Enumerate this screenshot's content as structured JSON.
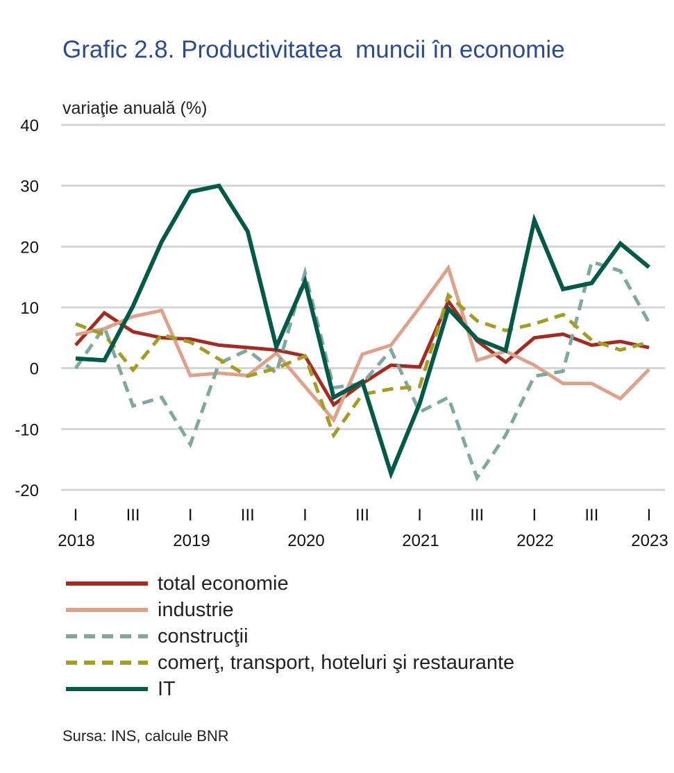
{
  "chart_data": {
    "type": "line",
    "title": "Grafic 2.8. Productivitatea  muncii în economie",
    "unit_label": "variaţie anuală (%)",
    "source": "Sursa: INS, calcule BNR",
    "ylim": [
      -20,
      40
    ],
    "y_ticks": [
      40,
      30,
      20,
      10,
      0,
      -10,
      -20
    ],
    "y_tick_labels": [
      "40",
      "30",
      "20",
      "10",
      "0",
      "-10",
      "-20"
    ],
    "grid": true,
    "x_quarter_ticks": [
      "I",
      "III",
      "I",
      "III",
      "I",
      "III",
      "I",
      "III",
      "I",
      "III",
      "I"
    ],
    "x_year_labels": [
      "2018",
      "2019",
      "2020",
      "2021",
      "2022",
      "2023"
    ],
    "x": [
      "2018 I",
      "2018 II",
      "2018 III",
      "2018 IV",
      "2019 I",
      "2019 II",
      "2019 III",
      "2019 IV",
      "2020 I",
      "2020 II",
      "2020 III",
      "2020 IV",
      "2021 I",
      "2021 II",
      "2021 III",
      "2021 IV",
      "2022 I",
      "2022 II",
      "2022 III",
      "2022 IV",
      "2023 I"
    ],
    "legend_position": "bottom",
    "series": [
      {
        "name": "total economie",
        "color": "#a52a22",
        "dash": "solid",
        "values": [
          3.8,
          9.1,
          6.0,
          5.0,
          4.8,
          3.8,
          3.4,
          3.0,
          2.0,
          -6.0,
          -2.5,
          0.5,
          0.2,
          11.0,
          4.5,
          1.0,
          5.0,
          5.6,
          3.8,
          4.4,
          3.4
        ]
      },
      {
        "name": "industrie",
        "color": "#e0a18a",
        "dash": "solid",
        "values": [
          5.5,
          6.5,
          8.5,
          9.5,
          -1.2,
          -0.8,
          -1.2,
          2.5,
          -3.0,
          -8.5,
          2.3,
          3.8,
          10.0,
          16.5,
          1.3,
          2.8,
          0.5,
          -2.5,
          -2.5,
          -5.0,
          -0.2
        ]
      },
      {
        "name": "construcţii",
        "color": "#7fa8a0",
        "dash": "dashed",
        "values": [
          0.0,
          6.8,
          -6.2,
          -4.8,
          -12.5,
          0.8,
          3.0,
          -0.8,
          15.7,
          -3.2,
          -2.5,
          3.0,
          -7.2,
          -4.8,
          -18.0,
          -11.0,
          -1.3,
          -0.5,
          17.5,
          16.0,
          7.5
        ]
      },
      {
        "name": "comerţ, transport, hoteluri şi restaurante",
        "color": "#a39d24",
        "dash": "dashed",
        "values": [
          7.3,
          5.5,
          -0.3,
          5.5,
          4.3,
          1.5,
          -1.3,
          0.0,
          2.0,
          -11.0,
          -4.3,
          -3.4,
          -3.0,
          12.0,
          7.8,
          6.2,
          7.3,
          8.8,
          4.6,
          3.0,
          4.3
        ]
      },
      {
        "name": "IT",
        "color": "#005a46",
        "dash": "solid",
        "values": [
          1.6,
          1.3,
          10.2,
          20.8,
          29.0,
          30.0,
          22.5,
          3.5,
          14.3,
          -4.8,
          -2.2,
          -17.3,
          -5.8,
          9.8,
          4.8,
          2.9,
          24.3,
          13.0,
          14.0,
          20.5,
          16.6
        ]
      }
    ]
  }
}
